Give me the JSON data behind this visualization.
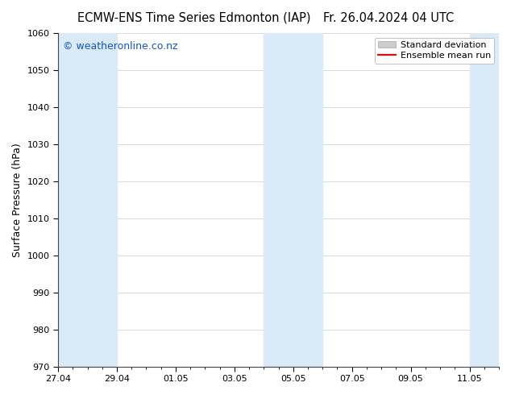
{
  "title_left": "ECMW-ENS Time Series Edmonton (IAP)",
  "title_right": "Fr. 26.04.2024 04 UTC",
  "ylabel": "Surface Pressure (hPa)",
  "ylim": [
    970,
    1060
  ],
  "yticks": [
    970,
    980,
    990,
    1000,
    1010,
    1020,
    1030,
    1040,
    1050,
    1060
  ],
  "watermark": "© weatheronline.co.nz",
  "watermark_color": "#1155cc",
  "background_color": "#ffffff",
  "plot_bg_color": "#ffffff",
  "shaded_band_color": "#daeaf7",
  "ensemble_mean_color": "#ff0000",
  "std_dev_color": "#cccccc",
  "num_days": 15,
  "shaded_regions": [
    {
      "start": 0,
      "end": 2
    },
    {
      "start": 7,
      "end": 9
    },
    {
      "start": 14,
      "end": 15
    }
  ],
  "x_tick_labels": [
    "27.04",
    "29.04",
    "01.05",
    "03.05",
    "05.05",
    "07.05",
    "09.05",
    "11.05"
  ],
  "x_tick_positions": [
    0,
    2,
    4,
    6,
    8,
    10,
    12,
    14
  ],
  "title_fontsize": 10.5,
  "label_fontsize": 9,
  "tick_fontsize": 8,
  "legend_fontsize": 8,
  "legend_label_std": "Standard deviation",
  "legend_label_mean": "Ensemble mean run"
}
